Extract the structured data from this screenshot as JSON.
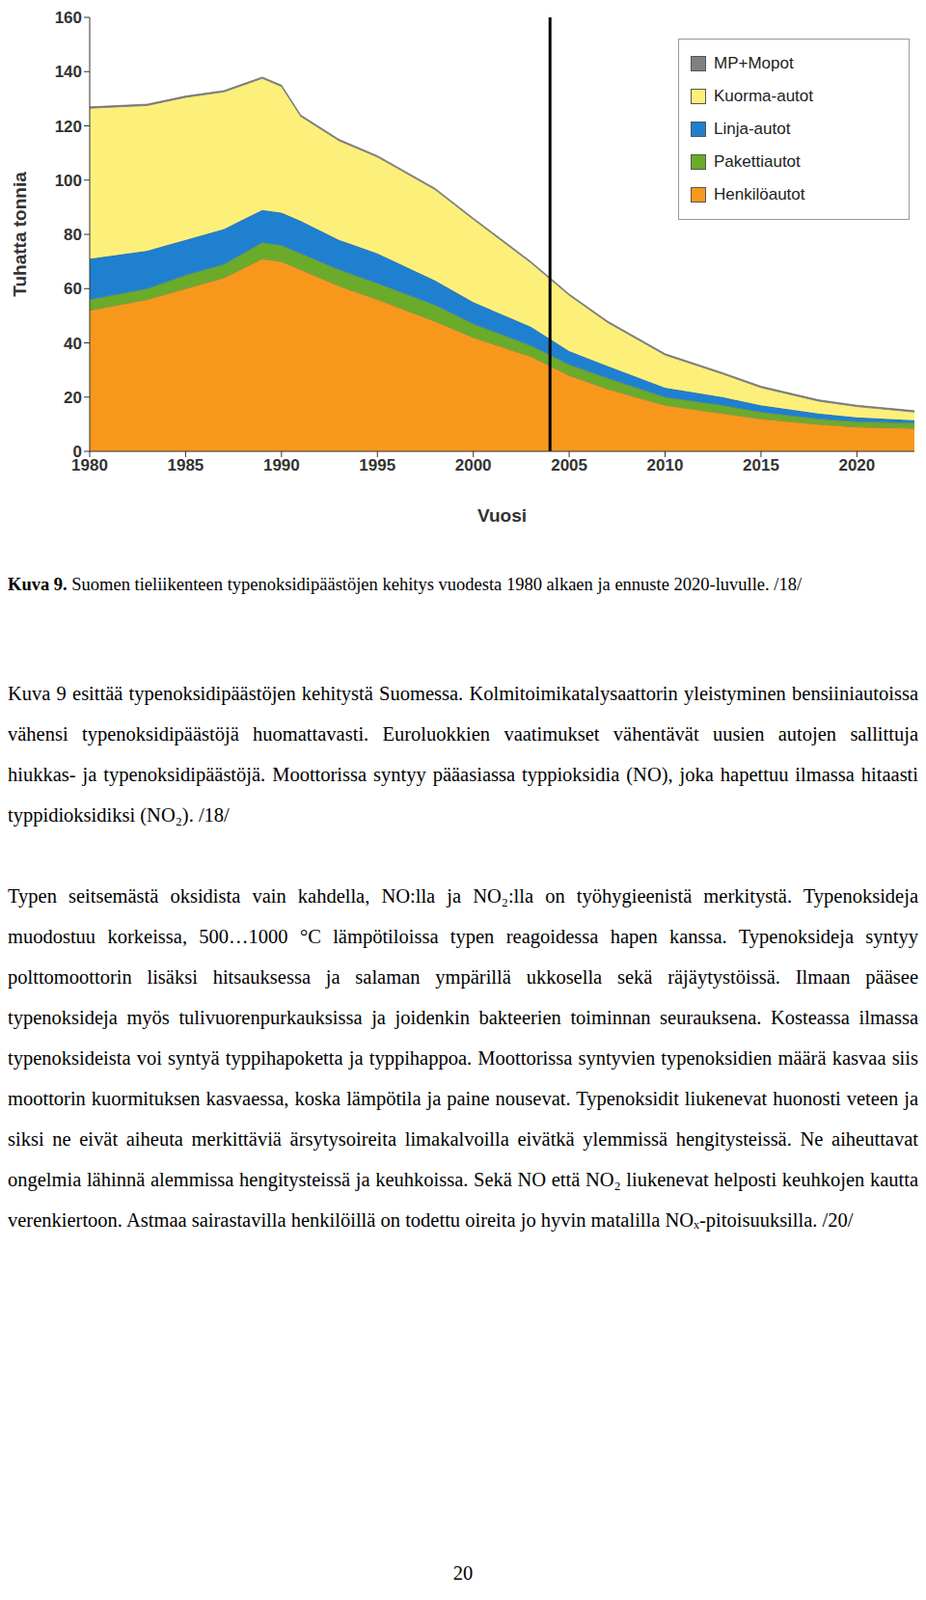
{
  "chart_data": {
    "type": "area",
    "stacked": true,
    "grid": false,
    "legend": "upper right",
    "x_label": "Vuosi",
    "y_label": "Tuhatta tonnia",
    "x": [
      1980,
      1983,
      1985,
      1987,
      1989,
      1990,
      1991,
      1993,
      1995,
      1998,
      2000,
      2003,
      2005,
      2007,
      2010,
      2013,
      2015,
      2018,
      2020,
      2023
    ],
    "xlim": [
      1980,
      2023
    ],
    "xticks": [
      1980,
      1985,
      1990,
      1995,
      2000,
      2005,
      2010,
      2015,
      2020
    ],
    "ylim": [
      0,
      160
    ],
    "yticks": [
      0,
      20,
      40,
      60,
      80,
      100,
      120,
      140,
      160
    ],
    "vline_x": 2004,
    "series": [
      {
        "name": "MP+Mopot",
        "color": "#808080",
        "values": [
          0.5,
          0.5,
          0.5,
          0.5,
          0.5,
          0.5,
          0.5,
          0.5,
          0.5,
          0.5,
          0.5,
          0.5,
          0.5,
          0.5,
          0.5,
          0.5,
          0.5,
          0.5,
          0.5,
          0.5
        ]
      },
      {
        "name": "Kuorma-autot",
        "color": "#fdf07a",
        "values": [
          55.5,
          53.5,
          52.5,
          50.5,
          48.5,
          46.5,
          38.5,
          36.5,
          35.5,
          33.5,
          30.5,
          23.5,
          20.5,
          16,
          12,
          8.5,
          6.5,
          4.5,
          4,
          3
        ]
      },
      {
        "name": "Linja-autot",
        "color": "#1f80d0",
        "values": [
          15,
          14,
          13,
          13,
          12,
          12,
          12,
          11,
          11,
          9,
          8,
          7,
          5,
          4.5,
          3.5,
          3,
          2.5,
          2,
          1.5,
          1
        ]
      },
      {
        "name": "Pakettiautot",
        "color": "#6aab2a",
        "values": [
          4,
          4,
          5,
          5,
          6,
          6,
          6,
          6,
          6,
          6,
          5,
          4,
          4,
          4,
          3,
          3,
          2.5,
          2,
          2,
          2
        ]
      },
      {
        "name": "Henkilöautot",
        "color": "#f7981d",
        "values": [
          52,
          56,
          60,
          64,
          71,
          70,
          67,
          61,
          56,
          48,
          42,
          35,
          28,
          23,
          17,
          14,
          12,
          10,
          9,
          8.5
        ]
      }
    ]
  },
  "caption": {
    "label": "Kuva 9.",
    "text": "Suomen tieliikenteen typenoksidipäästöjen kehitys vuodesta 1980 alkaen ja ennuste 2020-luvulle. /18/"
  },
  "paragraphs": [
    "Kuva 9 esittää typenoksidipäästöjen kehitystä Suomessa. Kolmitoimikatalysaattorin yleistyminen bensiiniautoissa vähensi typenoksidipäästöjä huomattavasti. Euroluokkien vaatimukset vähentävät uusien autojen sallittuja hiukkas- ja typenoksidipäästöjä. Moottorissa syntyy pääasiassa typpioksidia (NO), joka hapettuu ilmassa hitaasti typpidioksidiksi (NO₂). /18/",
    "Typen seitsemästä oksidista vain kahdella, NO:lla ja NO₂:lla on työhygieenistä merkitystä. Typenoksideja muodostuu korkeissa, 500…1000 °C lämpötiloissa typen reagoidessa hapen kanssa. Typenoksideja syntyy polttomoottorin lisäksi hitsauksessa ja salaman ympärillä ukkosella sekä räjäytystöissä. Ilmaan pääsee typenoksideja myös tulivuorenpurkauksissa ja joidenkin bakteerien toiminnan seurauksena. Kosteassa ilmassa typenoksideista voi syntyä typpihapoketta ja typpihappoa. Moottorissa syntyvien typenoksidien määrä kasvaa siis moottorin kuormituksen kasvaessa, koska lämpötila ja paine nousevat. Typenoksidit liukenevat huonosti veteen ja siksi ne eivät aiheuta merkittäviä ärsytysoireita limakalvoilla eivätkä ylemmissä hengitysteissä. Ne aiheuttavat ongelmia lähinnä alemmissa hengitysteissä ja keuhkoissa. Sekä NO että NO₂ liukenevat helposti keuhkojen kautta verenkiertoon. Astmaa sairastavilla henkilöillä on todettu oireita jo hyvin matalilla NOₓ-pitoisuuksilla. /20/"
  ],
  "page_number": "20"
}
